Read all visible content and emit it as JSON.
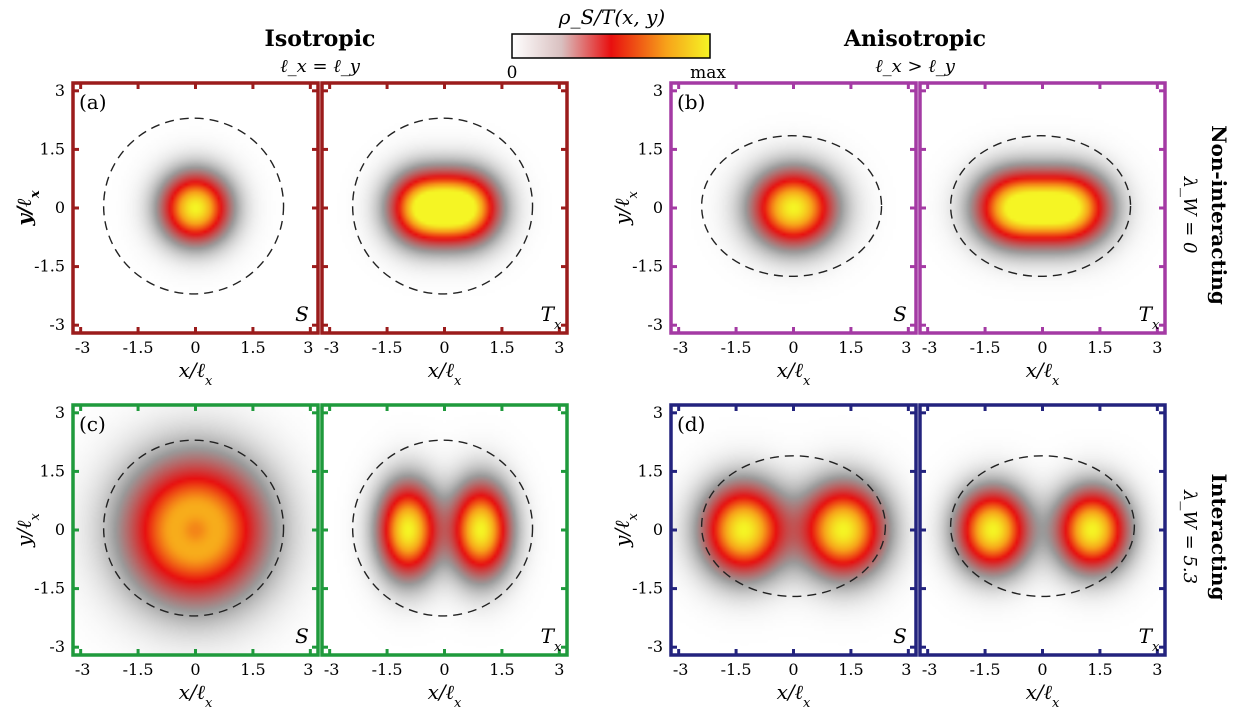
{
  "header": {
    "left_title": "Isotropic",
    "left_subtitle": "ℓ_x = ℓ_y",
    "right_title": "Anisotropic",
    "right_subtitle": "ℓ_x > ℓ_y",
    "colorbar_label": "ρ_S/T(x, y)",
    "colorbar_min": "0",
    "colorbar_max": "max"
  },
  "row_labels": [
    {
      "title": "Non-interacting",
      "param": "λ_W = 0"
    },
    {
      "title": "Interacting",
      "param": "λ_W = 5.3"
    }
  ],
  "colors": {
    "a": "#9b1c1c",
    "b": "#a43aa4",
    "c": "#1f9a3c",
    "d": "#23237e",
    "colormap": [
      "#ffffff",
      "#9a9a9a",
      "#e80f0f",
      "#f7a21a",
      "#f5f524"
    ]
  },
  "chart_data": {
    "type": "heatmap",
    "x_ticks": [
      "-3",
      "-1.5",
      "0",
      "1.5",
      "3"
    ],
    "y_ticks": [
      "3",
      "1.5",
      "0",
      "-1.5",
      "-3"
    ],
    "xlim": [
      -3.2,
      3.2
    ],
    "ylim": [
      -3.2,
      3.2
    ],
    "xlabel": "x/ℓ_x",
    "ylabel": "y/ℓ_x",
    "panels": [
      {
        "label": "(a)",
        "color_key": "a",
        "subplots": [
          {
            "state": "S",
            "dashed_ellipse": {
              "cx": -0.05,
              "cy": 0.05,
              "rx": 2.35,
              "ry": 2.25
            },
            "peaks": [
              {
                "x": 0,
                "y": 0,
                "sx": 0.6,
                "sy": 0.6,
                "amp": 1.0
              }
            ]
          },
          {
            "state": "T_x",
            "dashed_ellipse": {
              "cx": -0.05,
              "cy": 0.05,
              "rx": 2.35,
              "ry": 2.25
            },
            "peaks": [
              {
                "x": -0.55,
                "y": 0,
                "sx": 0.6,
                "sy": 0.6,
                "amp": 1.0
              },
              {
                "x": 0.55,
                "y": 0,
                "sx": 0.6,
                "sy": 0.6,
                "amp": 1.0
              }
            ]
          }
        ]
      },
      {
        "label": "(b)",
        "color_key": "b",
        "subplots": [
          {
            "state": "S",
            "dashed_ellipse": {
              "cx": -0.05,
              "cy": 0.05,
              "rx": 2.35,
              "ry": 1.8
            },
            "peaks": [
              {
                "x": 0,
                "y": 0,
                "sx": 0.72,
                "sy": 0.65,
                "amp": 1.0
              }
            ]
          },
          {
            "state": "T_x",
            "dashed_ellipse": {
              "cx": -0.05,
              "cy": 0.05,
              "rx": 2.35,
              "ry": 1.8
            },
            "peaks": [
              {
                "x": -0.7,
                "y": 0,
                "sx": 0.7,
                "sy": 0.62,
                "amp": 1.0
              },
              {
                "x": 0.7,
                "y": 0,
                "sx": 0.7,
                "sy": 0.62,
                "amp": 1.0
              }
            ]
          }
        ]
      },
      {
        "label": "(c)",
        "color_key": "c",
        "subplots": [
          {
            "state": "S",
            "dashed_ellipse": {
              "cx": -0.05,
              "cy": 0.05,
              "rx": 2.35,
              "ry": 2.25
            },
            "peaks": [
              {
                "x": 0,
                "y": 0,
                "sx": 1.2,
                "sy": 1.2,
                "amp": 1.0
              },
              {
                "x": 0,
                "y": 0,
                "sx": 0.35,
                "sy": 0.35,
                "amp": -0.25
              }
            ]
          },
          {
            "state": "T_x",
            "dashed_ellipse": {
              "cx": -0.05,
              "cy": 0.05,
              "rx": 2.35,
              "ry": 2.25
            },
            "peaks": [
              {
                "x": -0.95,
                "y": 0,
                "sx": 0.52,
                "sy": 0.8,
                "amp": 1.0
              },
              {
                "x": 0.95,
                "y": 0,
                "sx": 0.52,
                "sy": 0.8,
                "amp": 1.0
              }
            ]
          }
        ]
      },
      {
        "label": "(d)",
        "color_key": "d",
        "subplots": [
          {
            "state": "S",
            "dashed_ellipse": {
              "cx": 0,
              "cy": 0.1,
              "rx": 2.4,
              "ry": 1.8
            },
            "peaks": [
              {
                "x": -1.3,
                "y": 0,
                "sx": 0.72,
                "sy": 0.78,
                "amp": 1.0
              },
              {
                "x": 1.3,
                "y": 0,
                "sx": 0.72,
                "sy": 0.78,
                "amp": 1.0
              }
            ]
          },
          {
            "state": "T_x",
            "dashed_ellipse": {
              "cx": 0,
              "cy": 0.1,
              "rx": 2.4,
              "ry": 1.8
            },
            "peaks": [
              {
                "x": -1.3,
                "y": 0,
                "sx": 0.62,
                "sy": 0.7,
                "amp": 1.0
              },
              {
                "x": 1.3,
                "y": 0,
                "sx": 0.62,
                "sy": 0.7,
                "amp": 1.0
              }
            ]
          }
        ]
      }
    ]
  }
}
